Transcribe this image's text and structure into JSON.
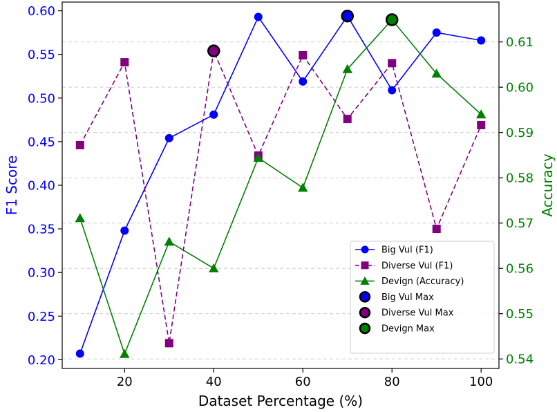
{
  "chart_data": {
    "type": "line",
    "title": "",
    "xlabel": "Dataset Percentage (%)",
    "ylabel_left": "F1 Score",
    "ylabel_right": "Accuracy",
    "xlim": [
      6,
      104
    ],
    "ylim_left": [
      0.19,
      0.61
    ],
    "ylim_right": [
      0.5379,
      0.6188
    ],
    "x_ticks": [
      20,
      40,
      60,
      80,
      100
    ],
    "y_ticks_left": [
      0.2,
      0.25,
      0.3,
      0.35,
      0.4,
      0.45,
      0.5,
      0.55,
      0.6
    ],
    "y_ticks_right": [
      0.54,
      0.55,
      0.56,
      0.57,
      0.58,
      0.59,
      0.6,
      0.61
    ],
    "grid": "horizontal dashed (right axis)",
    "legend_position": "lower-right",
    "x": [
      10,
      20,
      30,
      40,
      50,
      60,
      70,
      80,
      90,
      100
    ],
    "series": [
      {
        "name": "Big Vul (F1)",
        "axis": "left",
        "color": "#0000ff",
        "marker": "circle",
        "linestyle": "solid",
        "values": [
          0.207,
          0.348,
          0.454,
          0.481,
          0.593,
          0.519,
          0.594,
          0.509,
          0.575,
          0.566
        ]
      },
      {
        "name": "Diverse Vul (F1)",
        "axis": "left",
        "color": "#800080",
        "marker": "square",
        "linestyle": "dashed",
        "values": [
          0.446,
          0.541,
          0.219,
          0.554,
          0.434,
          0.549,
          0.476,
          0.54,
          0.35,
          0.469
        ]
      },
      {
        "name": "Devign (Accuracy)",
        "axis": "right",
        "color": "#008000",
        "marker": "triangle",
        "linestyle": "solid",
        "values": [
          0.5711,
          0.5411,
          0.5659,
          0.56,
          0.5844,
          0.5778,
          0.604,
          0.6149,
          0.603,
          0.594
        ]
      }
    ],
    "max_markers": [
      {
        "name": "Big Vul Max",
        "axis": "left",
        "color": "#0000ff",
        "x": 70,
        "y": 0.594
      },
      {
        "name": "Diverse Vul Max",
        "axis": "left",
        "color": "#800080",
        "x": 40,
        "y": 0.554
      },
      {
        "name": "Devign Max",
        "axis": "right",
        "color": "#008000",
        "x": 80,
        "y": 0.6149
      }
    ],
    "colors": {
      "left_axis": "#0000ff",
      "right_axis": "#008000",
      "grid": "#cccccc",
      "max_edge": "#000000"
    }
  }
}
